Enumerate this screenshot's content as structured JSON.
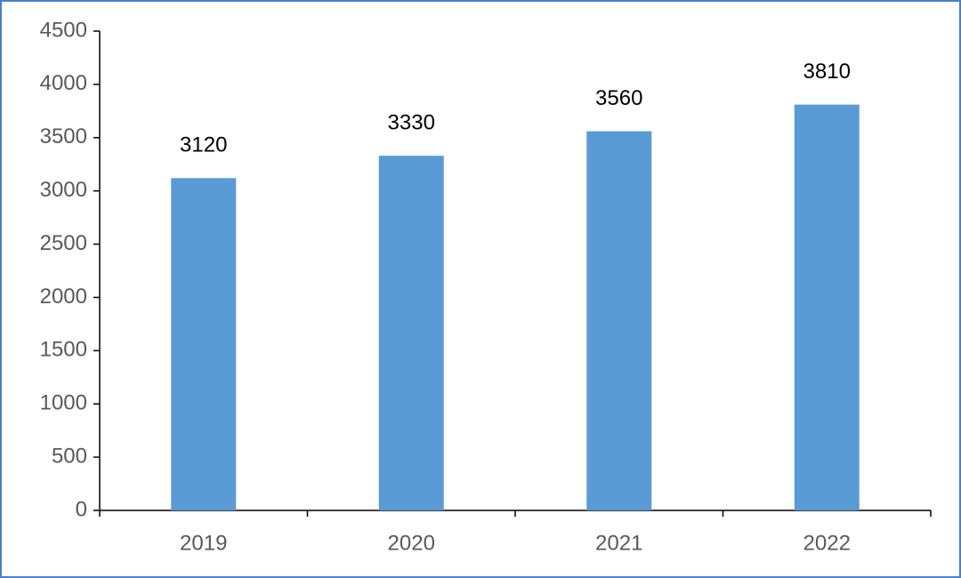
{
  "chart_data": {
    "type": "bar",
    "categories": [
      "2019",
      "2020",
      "2021",
      "2022"
    ],
    "values": [
      3120,
      3330,
      3560,
      3810
    ],
    "color": "#5b9bd5",
    "ylim": [
      0,
      4500
    ],
    "yticks": [
      0,
      500,
      1000,
      1500,
      2000,
      2500,
      3000,
      3500,
      4000,
      4500
    ],
    "grid": false
  }
}
